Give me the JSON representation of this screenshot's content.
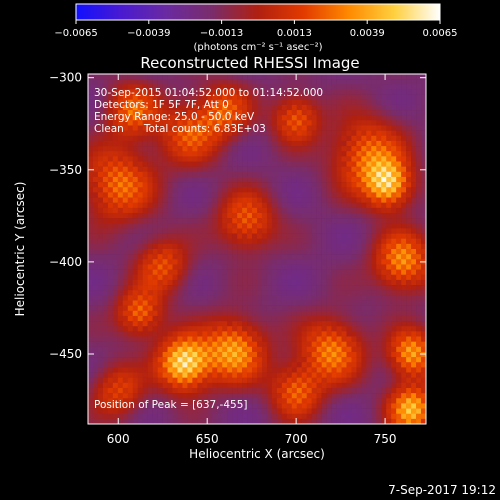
{
  "chart_data": {
    "type": "heatmap",
    "title": "Reconstructed RHESSI Image",
    "xlabel": "Heliocentric X (arcsec)",
    "ylabel": "Heliocentric Y (arcsec)",
    "xlim": [
      583,
      773
    ],
    "ylim": [
      -488,
      -298
    ],
    "x_ticks": [
      600,
      650,
      700,
      750
    ],
    "y_ticks": [
      -300,
      -350,
      -400,
      -450
    ],
    "x_tick_labels": [
      "600",
      "650",
      "700",
      "750"
    ],
    "y_tick_labels": [
      "−300",
      "−350",
      "−400",
      "−450"
    ],
    "colorbar": {
      "range": [
        -0.0065,
        0.0065
      ],
      "tick_values": [
        -0.0065,
        -0.0039,
        -0.0013,
        0.0013,
        0.0039,
        0.0065
      ],
      "tick_labels": [
        "−0.0065",
        "−0.0039",
        "−0.0013",
        "0.0013",
        "0.0039",
        "0.0065"
      ],
      "units_label": "(photons cm⁻² s⁻¹ asec⁻²)",
      "colors": [
        "#1010ff",
        "#4a1ad0",
        "#6a2aa0",
        "#7a2c6a",
        "#b02010",
        "#e23a00",
        "#ff8a00",
        "#ffd040",
        "#ffffff"
      ]
    },
    "annotations": {
      "time": "30-Sep-2015 01:04:52.000 to 01:14:52.000",
      "detectors": "Detectors: 1F 5F 7F, Att 0",
      "energy": "Energy Range: 25.0 - 50.0 keV",
      "clean": "Clean      Total counts: 6.83E+03",
      "peak": "Position of Peak = [637,-455]"
    },
    "peak": [
      637,
      -455
    ],
    "bright_sources": [
      {
        "x": 608,
        "y": -318,
        "sigma": 10,
        "amp": 0.55
      },
      {
        "x": 600,
        "y": -358,
        "sigma": 14,
        "amp": 0.6
      },
      {
        "x": 640,
        "y": -330,
        "sigma": 12,
        "amp": 0.5
      },
      {
        "x": 660,
        "y": -318,
        "sigma": 10,
        "amp": 0.5
      },
      {
        "x": 700,
        "y": -322,
        "sigma": 9,
        "amp": 0.55
      },
      {
        "x": 672,
        "y": -378,
        "sigma": 11,
        "amp": 0.55
      },
      {
        "x": 740,
        "y": -342,
        "sigma": 14,
        "amp": 0.6
      },
      {
        "x": 752,
        "y": -358,
        "sigma": 9,
        "amp": 0.8
      },
      {
        "x": 760,
        "y": -400,
        "sigma": 11,
        "amp": 0.7
      },
      {
        "x": 612,
        "y": -428,
        "sigma": 9,
        "amp": 0.6
      },
      {
        "x": 625,
        "y": -402,
        "sigma": 10,
        "amp": 0.5
      },
      {
        "x": 637,
        "y": -455,
        "sigma": 10,
        "amp": 1.0
      },
      {
        "x": 665,
        "y": -448,
        "sigma": 12,
        "amp": 0.75
      },
      {
        "x": 720,
        "y": -448,
        "sigma": 12,
        "amp": 0.65
      },
      {
        "x": 700,
        "y": -470,
        "sigma": 10,
        "amp": 0.55
      },
      {
        "x": 765,
        "y": -450,
        "sigma": 9,
        "amp": 0.75
      },
      {
        "x": 765,
        "y": -480,
        "sigma": 9,
        "amp": 0.8
      },
      {
        "x": 600,
        "y": -470,
        "sigma": 10,
        "amp": 0.45
      }
    ]
  },
  "footer": {
    "timestamp": "7-Sep-2017 19:12"
  }
}
